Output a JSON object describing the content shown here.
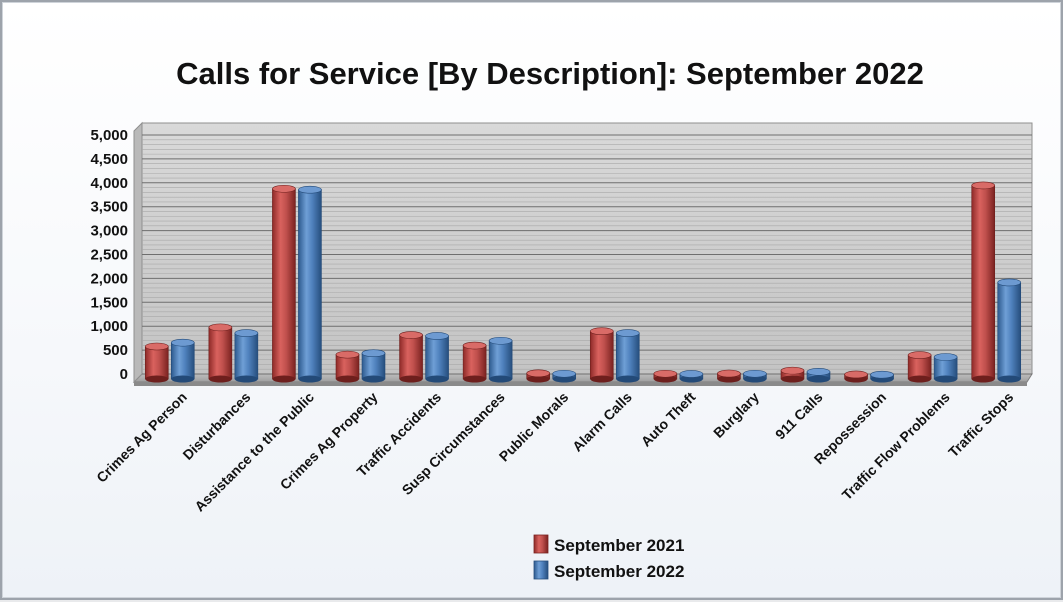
{
  "chart_data": {
    "type": "bar",
    "title": "Calls for Service [By Description]: September 2022",
    "categories": [
      "Crimes Ag Person",
      "Disturbances",
      "Assistance to the Public",
      "Crimes Ag Property",
      "Traffic Accidents",
      "Susp Circumstances",
      "Public Morals",
      "Alarm Calls",
      "Auto Theft",
      "Burglary",
      "911 Calls",
      "Repossession",
      "Traffic Flow Problems",
      "Traffic Stops"
    ],
    "series": [
      {
        "name": "September 2021",
        "color": "#c0504d",
        "values": [
          680,
          1080,
          3980,
          510,
          920,
          700,
          120,
          1000,
          110,
          115,
          175,
          95,
          500,
          4050
        ]
      },
      {
        "name": "September 2022",
        "color": "#4f81bd",
        "values": [
          760,
          960,
          3960,
          540,
          900,
          800,
          110,
          960,
          105,
          110,
          150,
          90,
          460,
          2020
        ]
      }
    ],
    "yticks": [
      "0",
      "500",
      "1,000",
      "1,500",
      "2,000",
      "2,500",
      "3,000",
      "3,500",
      "4,000",
      "4,500",
      "5,000"
    ],
    "ylim": [
      0,
      5000
    ],
    "grid": true,
    "legend": "bottom-center"
  }
}
